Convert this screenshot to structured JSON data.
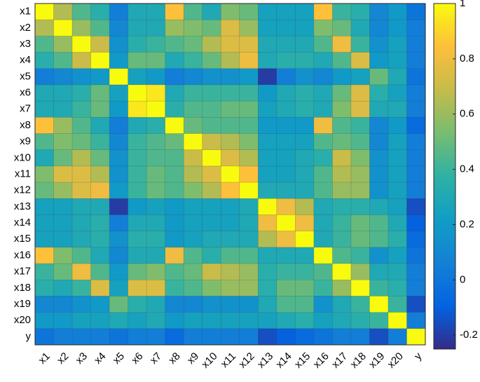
{
  "chart_data": {
    "type": "heatmap",
    "x_categories": [
      "x1",
      "x2",
      "x3",
      "x4",
      "x5",
      "x6",
      "x7",
      "x8",
      "x9",
      "x10",
      "x11",
      "x12",
      "x13",
      "x14",
      "x15",
      "x16",
      "x17",
      "x18",
      "x19",
      "x20",
      "y"
    ],
    "y_categories": [
      "x1",
      "x2",
      "x3",
      "x4",
      "x5",
      "x6",
      "x7",
      "x8",
      "x9",
      "x10",
      "x11",
      "x12",
      "x13",
      "x14",
      "x15",
      "x16",
      "x17",
      "x18",
      "x19",
      "x20",
      "y"
    ],
    "values": [
      [
        1,
        0.65,
        0.45,
        0.35,
        0.05,
        0.3,
        0.3,
        0.85,
        0.45,
        0.3,
        0.55,
        0.5,
        0.25,
        0.25,
        0.25,
        0.85,
        0.4,
        0.35,
        0.1,
        0.2,
        0
      ],
      [
        0.65,
        1,
        0.6,
        0.45,
        0.1,
        0.3,
        0.3,
        0.6,
        0.55,
        0.5,
        0.75,
        0.6,
        0.25,
        0.25,
        0.25,
        0.55,
        0.5,
        0.3,
        0.1,
        0.2,
        0.05
      ],
      [
        0.45,
        0.6,
        1,
        0.7,
        0.15,
        0.35,
        0.4,
        0.45,
        0.5,
        0.65,
        0.75,
        0.75,
        0.3,
        0.3,
        0.3,
        0.45,
        0.8,
        0.4,
        0.15,
        0.25,
        0.05
      ],
      [
        0.35,
        0.45,
        0.7,
        1,
        0.2,
        0.5,
        0.5,
        0.3,
        0.4,
        0.5,
        0.65,
        0.8,
        0.3,
        0.35,
        0.35,
        0.3,
        0.45,
        0.75,
        0.2,
        0.25,
        0.05
      ],
      [
        0.05,
        0.1,
        0.15,
        0.2,
        1,
        0.25,
        0.2,
        0.05,
        0.1,
        0.15,
        0.15,
        0.2,
        -0.2,
        0.05,
        0.15,
        0.1,
        0.2,
        0.25,
        0.5,
        0.3,
        0
      ],
      [
        0.3,
        0.3,
        0.35,
        0.5,
        0.25,
        1,
        0.95,
        0.3,
        0.4,
        0.4,
        0.4,
        0.4,
        0.2,
        0.3,
        0.35,
        0.3,
        0.5,
        0.75,
        0.35,
        0.25,
        0.05
      ],
      [
        0.3,
        0.3,
        0.4,
        0.5,
        0.2,
        0.95,
        1,
        0.35,
        0.45,
        0.45,
        0.5,
        0.5,
        0.25,
        0.3,
        0.35,
        0.3,
        0.55,
        0.75,
        0.3,
        0.3,
        0.05
      ],
      [
        0.85,
        0.6,
        0.45,
        0.3,
        0.05,
        0.3,
        0.35,
        1,
        0.5,
        0.45,
        0.45,
        0.45,
        0.2,
        0.2,
        0.2,
        0.8,
        0.45,
        0.4,
        0.1,
        0.2,
        -0.05
      ],
      [
        0.45,
        0.55,
        0.5,
        0.4,
        0.1,
        0.4,
        0.45,
        0.5,
        1,
        0.7,
        0.65,
        0.55,
        0.25,
        0.25,
        0.25,
        0.45,
        0.5,
        0.45,
        0.1,
        0.25,
        0.05
      ],
      [
        0.3,
        0.5,
        0.65,
        0.5,
        0.15,
        0.4,
        0.45,
        0.45,
        0.7,
        1,
        0.75,
        0.65,
        0.25,
        0.25,
        0.3,
        0.35,
        0.7,
        0.55,
        0.15,
        0.25,
        0.05
      ],
      [
        0.55,
        0.75,
        0.75,
        0.65,
        0.15,
        0.4,
        0.5,
        0.45,
        0.65,
        0.75,
        1,
        0.85,
        0.25,
        0.25,
        0.3,
        0.45,
        0.65,
        0.6,
        0.15,
        0.25,
        0.05
      ],
      [
        0.5,
        0.6,
        0.75,
        0.8,
        0.2,
        0.4,
        0.5,
        0.45,
        0.55,
        0.65,
        0.85,
        1,
        0.3,
        0.3,
        0.3,
        0.45,
        0.6,
        0.6,
        0.15,
        0.25,
        0.05
      ],
      [
        0.25,
        0.25,
        0.3,
        0.3,
        -0.2,
        0.2,
        0.25,
        0.2,
        0.25,
        0.25,
        0.25,
        0.3,
        1,
        0.8,
        0.65,
        0.3,
        0.35,
        0.35,
        0.3,
        0.25,
        -0.15
      ],
      [
        0.25,
        0.25,
        0.3,
        0.35,
        0.05,
        0.3,
        0.3,
        0.2,
        0.25,
        0.25,
        0.25,
        0.3,
        0.8,
        1,
        0.8,
        0.3,
        0.4,
        0.5,
        0.45,
        0.3,
        -0.1
      ],
      [
        0.25,
        0.25,
        0.3,
        0.35,
        0.15,
        0.35,
        0.35,
        0.2,
        0.25,
        0.3,
        0.3,
        0.3,
        0.65,
        0.8,
        1,
        0.3,
        0.4,
        0.5,
        0.45,
        0.35,
        -0.05
      ],
      [
        0.85,
        0.55,
        0.45,
        0.3,
        0.1,
        0.3,
        0.3,
        0.8,
        0.45,
        0.35,
        0.45,
        0.45,
        0.3,
        0.3,
        0.3,
        1,
        0.45,
        0.4,
        0.15,
        0.25,
        0
      ],
      [
        0.4,
        0.5,
        0.8,
        0.45,
        0.2,
        0.5,
        0.55,
        0.45,
        0.5,
        0.7,
        0.65,
        0.6,
        0.35,
        0.4,
        0.4,
        0.45,
        1,
        0.6,
        0.3,
        0.3,
        0.05
      ],
      [
        0.35,
        0.3,
        0.4,
        0.75,
        0.25,
        0.75,
        0.75,
        0.4,
        0.45,
        0.55,
        0.6,
        0.6,
        0.35,
        0.5,
        0.5,
        0.4,
        0.6,
        1,
        0.4,
        0.35,
        0.05
      ],
      [
        0.1,
        0.1,
        0.15,
        0.2,
        0.5,
        0.35,
        0.3,
        0.1,
        0.1,
        0.15,
        0.15,
        0.15,
        0.3,
        0.45,
        0.45,
        0.15,
        0.3,
        0.4,
        1,
        0.4,
        -0.15
      ],
      [
        0.2,
        0.2,
        0.25,
        0.25,
        0.3,
        0.25,
        0.3,
        0.2,
        0.25,
        0.25,
        0.25,
        0.25,
        0.25,
        0.3,
        0.35,
        0.25,
        0.3,
        0.35,
        0.4,
        1,
        0.05
      ],
      [
        0,
        0.05,
        0.05,
        0.05,
        0,
        0.05,
        0.05,
        -0.05,
        0.05,
        0.05,
        0.05,
        0.05,
        -0.15,
        -0.1,
        -0.05,
        0,
        0.05,
        0.05,
        -0.15,
        0.05,
        1
      ]
    ],
    "colormap": "parula",
    "clim": [
      -0.25,
      1
    ],
    "colorbar_ticks": [
      -0.2,
      0,
      0.2,
      0.4,
      0.6,
      0.8,
      1
    ]
  }
}
